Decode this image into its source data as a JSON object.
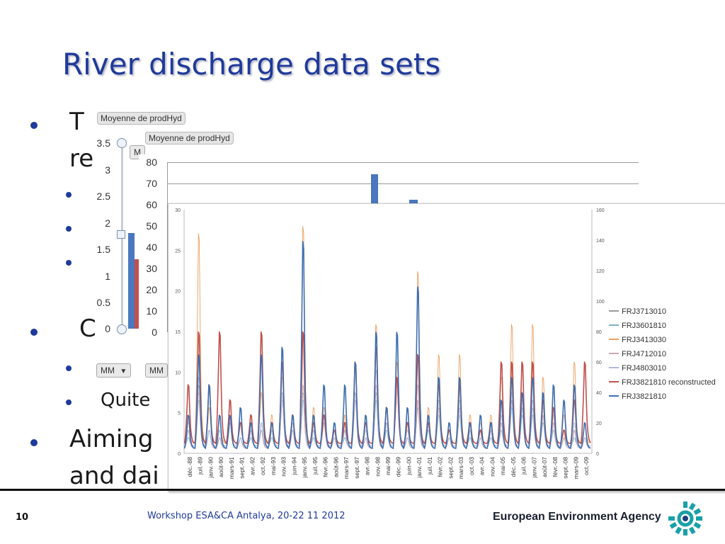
{
  "slide": {
    "title": "River discharge data sets",
    "bullets": [
      "T",
      "re",
      "",
      "",
      "",
      "C",
      "",
      "Quite",
      "Aiming",
      "and dai"
    ],
    "page_number": "10",
    "footer": "Workshop ESA&CA Antalya, 20-22 11 2012",
    "agency": "European Environment Agency",
    "colors": {
      "title": "#1f3a9a",
      "accent_blue": "#4a77be",
      "accent_red": "#c0504d"
    }
  },
  "back_chart_1": {
    "field_label": "Moyenne de prodHyd",
    "y_ticks": [
      "3.5",
      "3",
      "2.5",
      "2",
      "1.5",
      "1",
      "0.5",
      "0"
    ],
    "ylim": [
      0,
      3.5
    ],
    "visible_values": {
      "blue": 1.8,
      "red": 1.3
    },
    "dropdown_1": "MM",
    "dropdown_2": "MM",
    "dropdown_2_icon": "chevron-down-icon",
    "partial_label": "M"
  },
  "back_chart_2": {
    "field_label": "Moyenne de prodHyd",
    "y_ticks": [
      "80",
      "70",
      "60",
      "50",
      "40",
      "30",
      "20",
      "10",
      "0"
    ],
    "ylim": [
      0,
      80
    ],
    "visible_bars": [
      74.5,
      62.5
    ]
  },
  "chart_data": {
    "type": "line",
    "title": "",
    "y_left_ticks": [
      "30",
      "25",
      "20",
      "15",
      "10",
      "5",
      "0"
    ],
    "y_right_ticks": [
      "160",
      "140",
      "120",
      "100",
      "80",
      "60",
      "40",
      "20",
      "0"
    ],
    "ylim_left": [
      0,
      30
    ],
    "ylim_right": [
      0,
      160
    ],
    "x_tick_labels": [
      "déc.-88",
      "juil.-89",
      "janv.-90",
      "août-90",
      "mars-91",
      "sept.-91",
      "avr.-92",
      "oct.-92",
      "mai-93",
      "nov.-93",
      "juin-94",
      "janv.-95",
      "juil.-95",
      "févr.-96",
      "août-96",
      "mars-97",
      "sept.-97",
      "avr.-98",
      "nov.-98",
      "mai-99",
      "déc.-99",
      "juin-00",
      "janv.-01",
      "juil.-01",
      "févr.-02",
      "sept.-02",
      "mars-03",
      "oct.-03",
      "avr.-04",
      "nov.-04",
      "mai-05",
      "déc.-05",
      "juil.-06",
      "janv.-07",
      "août-07",
      "févr.-08",
      "sept.-08",
      "mars-09",
      "oct.-09"
    ],
    "legend_position": "right",
    "series": [
      {
        "name": "FRJ3713010",
        "color": "#9a9a9a",
        "peaks": [
          3,
          9,
          3,
          2,
          5,
          2,
          3,
          4,
          3,
          8,
          4,
          8,
          3,
          5,
          3,
          3,
          8,
          2,
          8,
          4,
          10,
          2,
          7,
          4,
          6,
          2,
          6,
          3,
          2,
          3,
          4,
          7,
          6,
          6,
          5,
          4,
          2,
          3,
          2
        ]
      },
      {
        "name": "FRJ3601810",
        "color": "#7fb2c8",
        "peaks": [
          2,
          7,
          3,
          2,
          4,
          2,
          2,
          3,
          2,
          7,
          3,
          7,
          2,
          4,
          2,
          2,
          7,
          2,
          7,
          3,
          9,
          2,
          6,
          3,
          5,
          2,
          5,
          2,
          2,
          2,
          3,
          6,
          5,
          5,
          4,
          3,
          2,
          2,
          2
        ]
      },
      {
        "name": "FRJ3413030",
        "color": "#e8a060",
        "peaks": [
          4,
          29,
          6,
          5,
          5,
          4,
          4,
          8,
          5,
          10,
          5,
          30,
          6,
          6,
          4,
          5,
          11,
          4,
          17,
          6,
          12,
          4,
          24,
          6,
          13,
          4,
          13,
          5,
          4,
          5,
          10,
          17,
          11,
          17,
          10,
          8,
          5,
          12,
          4
        ]
      },
      {
        "name": "FRJ4712010",
        "color": "#c8aab8",
        "peaks": [
          3,
          8,
          3,
          2,
          4,
          2,
          3,
          3,
          3,
          7,
          3,
          9,
          3,
          4,
          2,
          3,
          7,
          2,
          9,
          4,
          9,
          2,
          7,
          4,
          6,
          2,
          6,
          3,
          2,
          3,
          4,
          7,
          6,
          6,
          5,
          4,
          2,
          3,
          2
        ]
      },
      {
        "name": "FRJ4803010",
        "color": "#b0b8d8",
        "peaks": [
          3,
          10,
          3,
          3,
          4,
          2,
          3,
          4,
          3,
          8,
          4,
          16,
          3,
          5,
          3,
          3,
          8,
          3,
          11,
          4,
          10,
          3,
          9,
          4,
          7,
          2,
          7,
          3,
          2,
          3,
          5,
          8,
          7,
          7,
          6,
          5,
          3,
          4,
          2
        ]
      },
      {
        "name": "FRJ3821810 reconstructed",
        "color": "#c0504d",
        "peaks": [
          9,
          16,
          9,
          16,
          7,
          4,
          5,
          16,
          4,
          12,
          5,
          16,
          4,
          5,
          3,
          4,
          12,
          4,
          14,
          6,
          10,
          4,
          13,
          4,
          9,
          3,
          9,
          4,
          3,
          4,
          12,
          12,
          12,
          12,
          7,
          6,
          3,
          7,
          12
        ]
      },
      {
        "name": "FRJ3821810",
        "color": "#3f6fb0",
        "peaks": [
          5,
          13,
          9,
          5,
          5,
          6,
          4,
          13,
          4,
          14,
          5,
          28,
          5,
          9,
          4,
          9,
          12,
          5,
          16,
          6,
          16,
          6,
          22,
          5,
          10,
          4,
          10,
          4,
          5,
          4,
          7,
          10,
          8,
          10,
          8,
          9,
          7,
          9,
          4
        ]
      }
    ]
  }
}
